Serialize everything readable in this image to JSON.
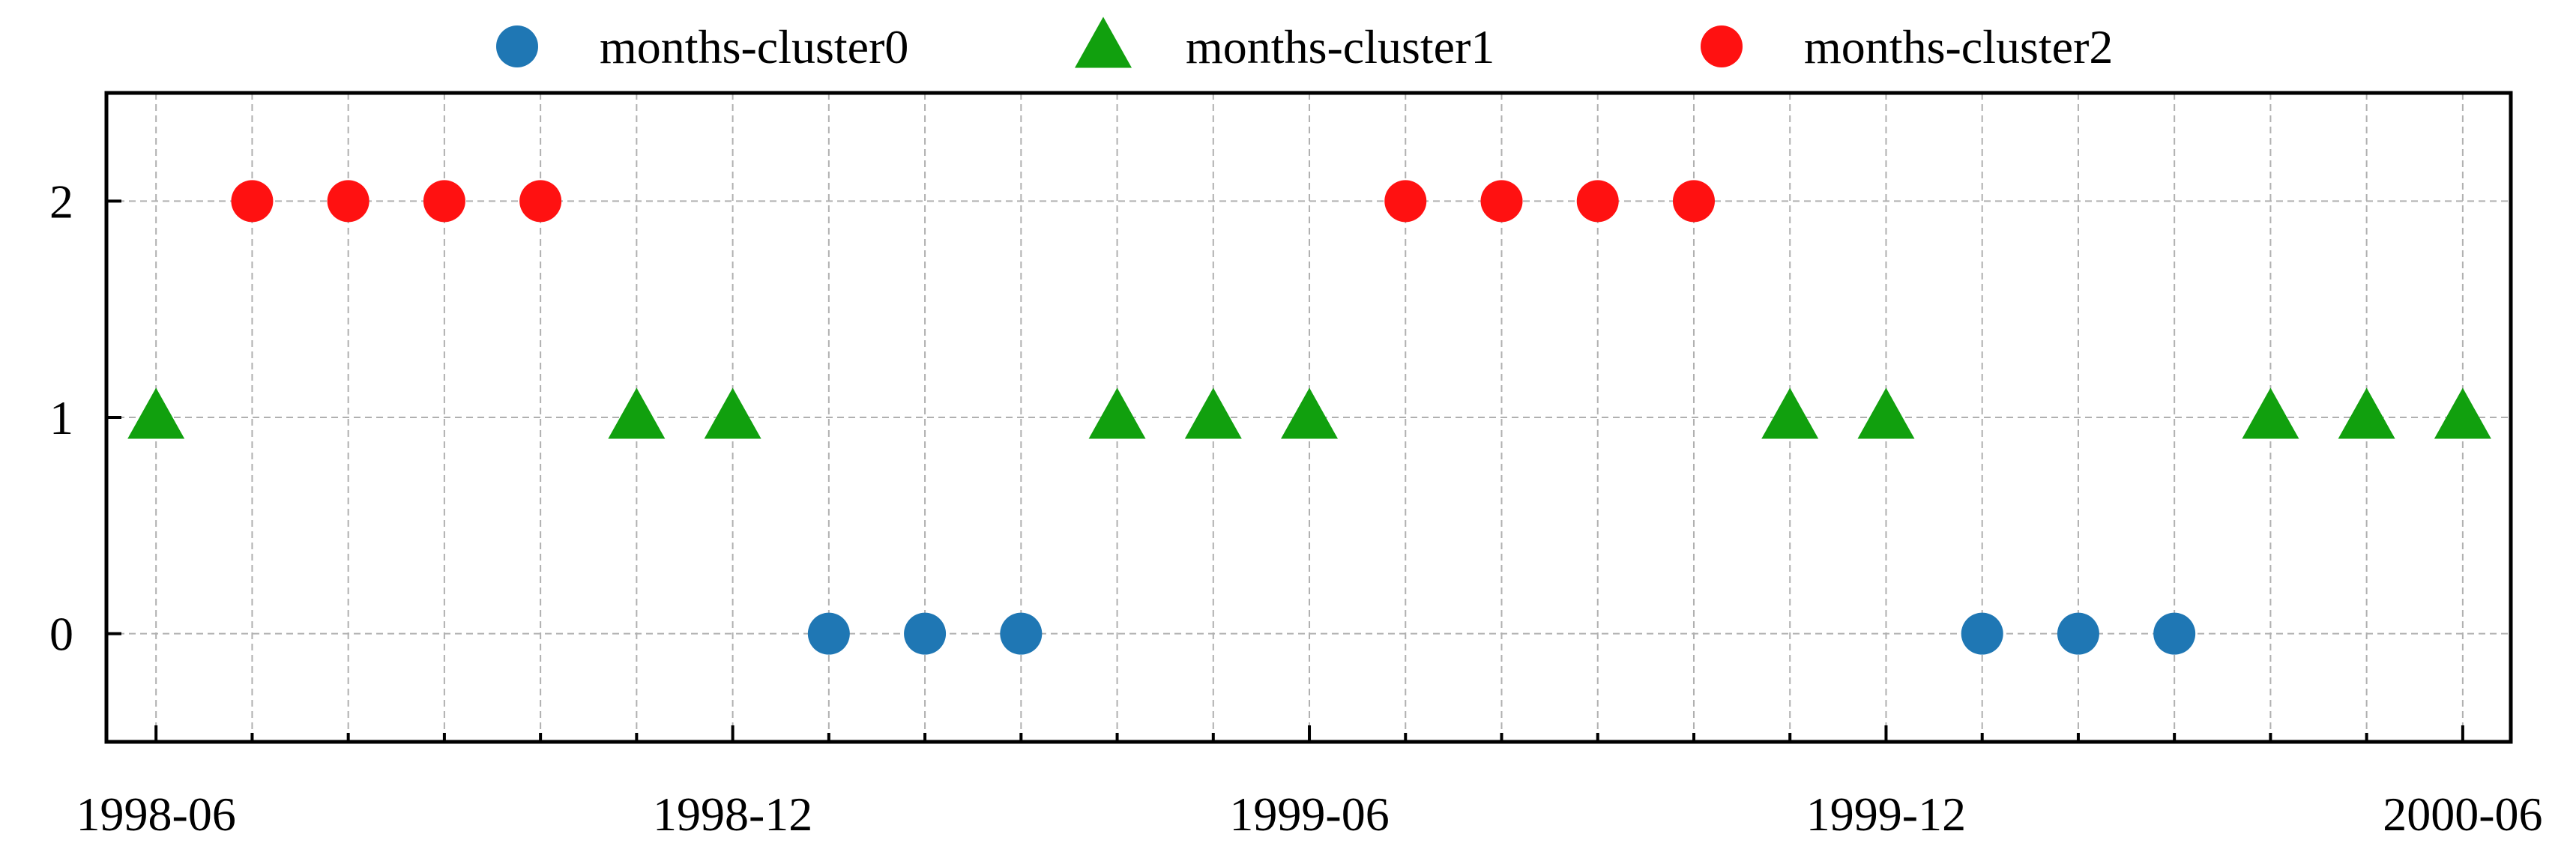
{
  "chart_data": {
    "type": "scatter",
    "title": "",
    "xlabel": "",
    "ylabel": "",
    "x_axis_type": "date-monthly",
    "xlim": [
      "1998-05-16",
      "2000-06-16"
    ],
    "ylim": [
      -0.5,
      2.5
    ],
    "x_ticks": [
      "1998-06",
      "1998-12",
      "1999-06",
      "1999-12",
      "2000-06"
    ],
    "x_minor_ticks": [
      "1998-06",
      "1998-07",
      "1998-08",
      "1998-09",
      "1998-10",
      "1998-11",
      "1998-12",
      "1999-01",
      "1999-02",
      "1999-03",
      "1999-04",
      "1999-05",
      "1999-06",
      "1999-07",
      "1999-08",
      "1999-09",
      "1999-10",
      "1999-11",
      "1999-12",
      "2000-01",
      "2000-02",
      "2000-03",
      "2000-04",
      "2000-05",
      "2000-06"
    ],
    "y_ticks": [
      0,
      1,
      2
    ],
    "grid": true,
    "legend_position": "top",
    "series": [
      {
        "name": "months-cluster0",
        "marker": "circle",
        "color": "#1f77b4",
        "points": [
          {
            "x": "1999-01",
            "y": 0
          },
          {
            "x": "1999-02",
            "y": 0
          },
          {
            "x": "1999-03",
            "y": 0
          },
          {
            "x": "2000-01",
            "y": 0
          },
          {
            "x": "2000-02",
            "y": 0
          },
          {
            "x": "2000-03",
            "y": 0
          }
        ]
      },
      {
        "name": "months-cluster1",
        "marker": "triangle",
        "color": "#11a00e",
        "points": [
          {
            "x": "1998-06",
            "y": 1
          },
          {
            "x": "1998-11",
            "y": 1
          },
          {
            "x": "1998-12",
            "y": 1
          },
          {
            "x": "1999-04",
            "y": 1
          },
          {
            "x": "1999-05",
            "y": 1
          },
          {
            "x": "1999-06",
            "y": 1
          },
          {
            "x": "1999-11",
            "y": 1
          },
          {
            "x": "1999-12",
            "y": 1
          },
          {
            "x": "2000-04",
            "y": 1
          },
          {
            "x": "2000-05",
            "y": 1
          },
          {
            "x": "2000-06",
            "y": 1
          }
        ]
      },
      {
        "name": "months-cluster2",
        "marker": "circle",
        "color": "#ff1111",
        "points": [
          {
            "x": "1998-07",
            "y": 2
          },
          {
            "x": "1998-08",
            "y": 2
          },
          {
            "x": "1998-09",
            "y": 2
          },
          {
            "x": "1998-10",
            "y": 2
          },
          {
            "x": "1999-07",
            "y": 2
          },
          {
            "x": "1999-08",
            "y": 2
          },
          {
            "x": "1999-09",
            "y": 2
          },
          {
            "x": "1999-10",
            "y": 2
          }
        ]
      }
    ]
  }
}
